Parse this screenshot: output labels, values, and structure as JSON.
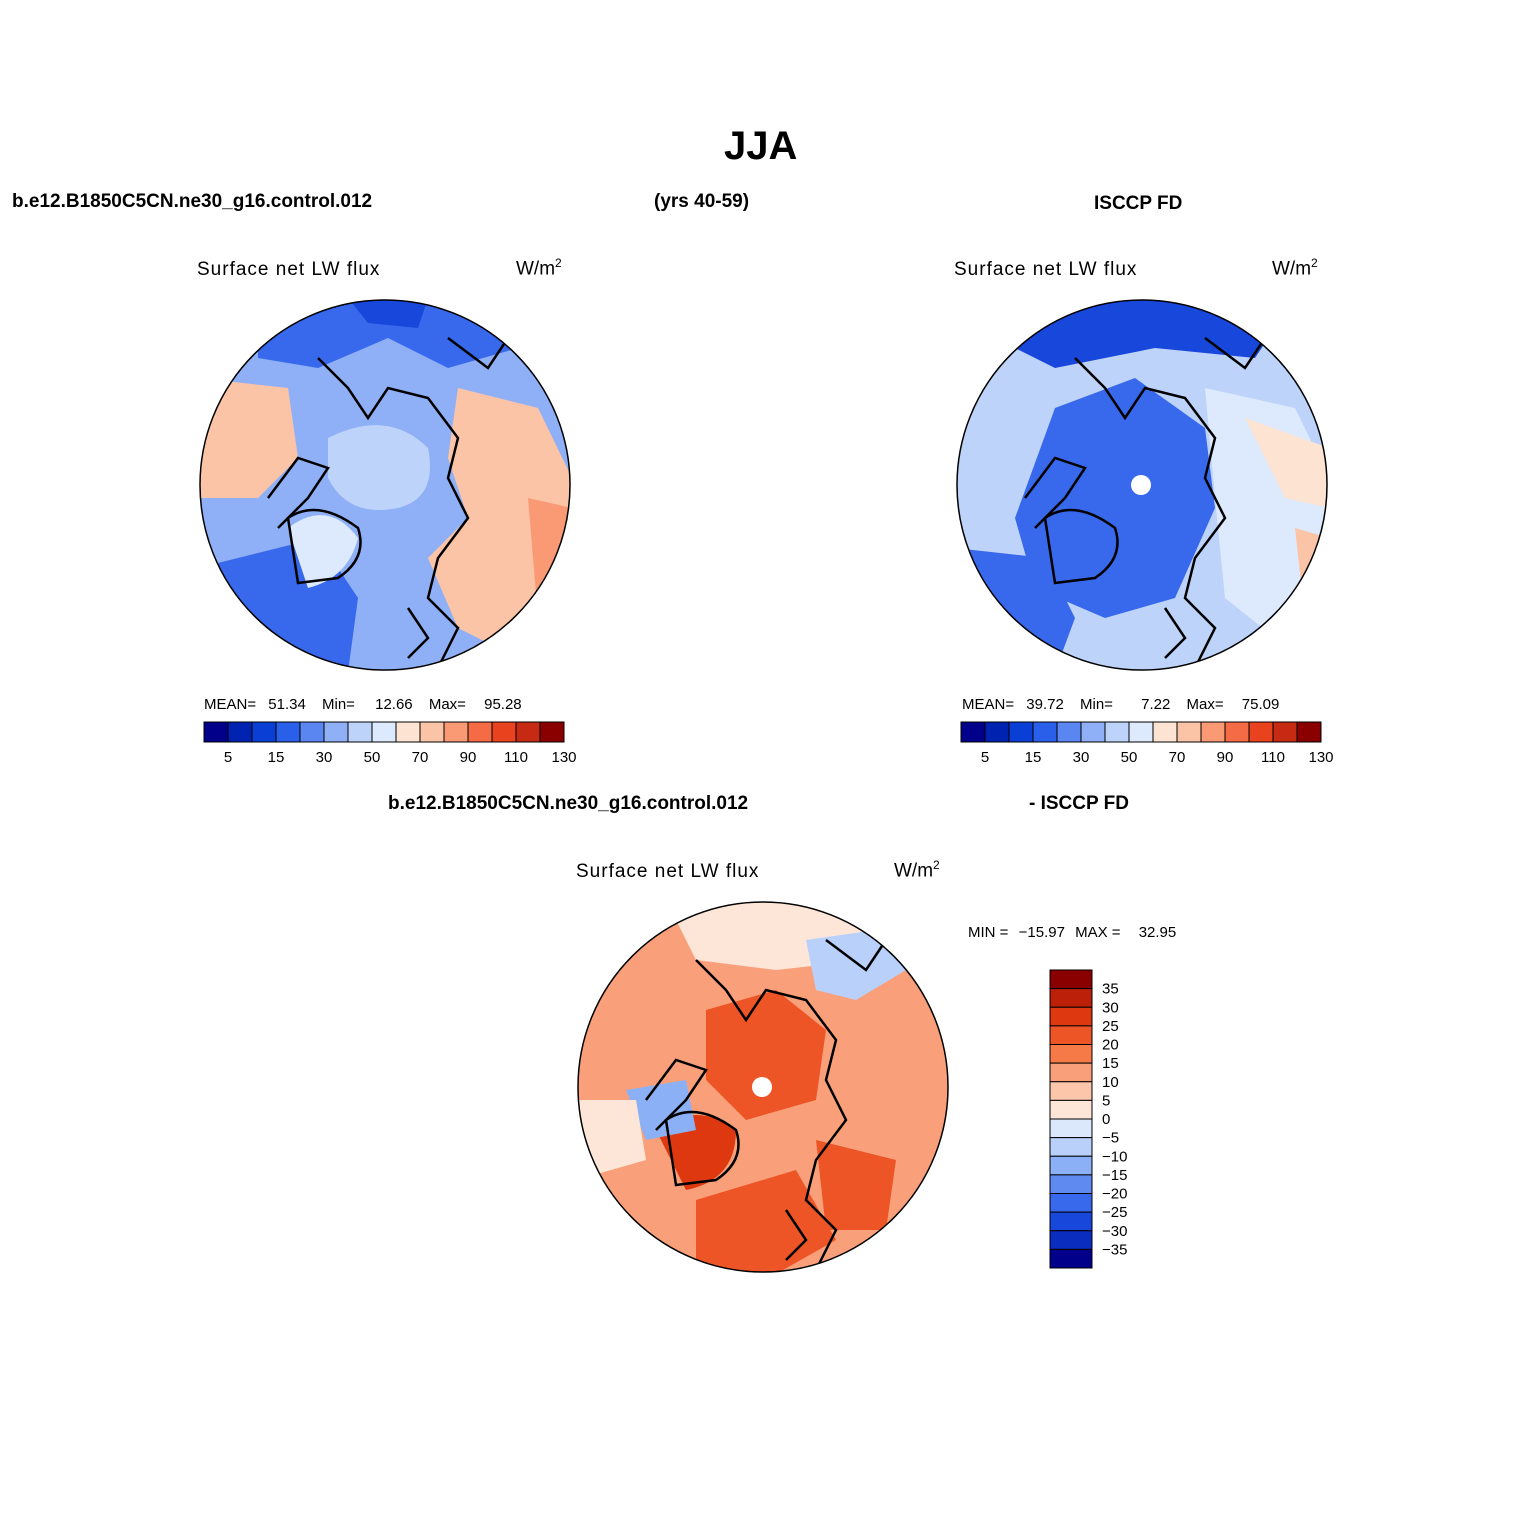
{
  "header": {
    "season": "JJA",
    "model_case": "b.e12.B1850C5CN.ne30_g16.control.012",
    "years": "(yrs 40-59)",
    "obs_name": "ISCCP FD",
    "diff_case": "b.e12.B1850C5CN.ne30_g16.control.012",
    "diff_obs": "- ISCCP FD"
  },
  "panels": {
    "model": {
      "title": "Surface net LW flux",
      "units": "W/m",
      "units_sup": "2",
      "mean_label": "MEAN=",
      "mean_value": "51.34",
      "min_label": "Min=",
      "min_value": "12.66",
      "max_label": "Max=",
      "max_value": "95.28"
    },
    "obs": {
      "title": "Surface net LW flux",
      "units": "W/m",
      "units_sup": "2",
      "mean_label": "MEAN=",
      "mean_value": "39.72",
      "min_label": "Min=",
      "min_value": "7.22",
      "max_label": "Max=",
      "max_value": "75.09"
    },
    "diff": {
      "title": "Surface net LW flux",
      "units": "W/m",
      "units_sup": "2",
      "min_label": "MIN =",
      "min_value": "−15.97",
      "max_label": "MAX =",
      "max_value": "32.95"
    }
  },
  "colorbars": {
    "horizontal": {
      "colors": [
        "#00008a",
        "#0022b0",
        "#0a3fd6",
        "#2a5fea",
        "#5a86f2",
        "#8fb0f6",
        "#bdd3fa",
        "#dde9fd",
        "#fde3d2",
        "#fcc4a6",
        "#f99a74",
        "#f46b45",
        "#e8421f",
        "#c72a12",
        "#8a0000"
      ],
      "tick_labels": [
        "5",
        "15",
        "30",
        "50",
        "70",
        "90",
        "110",
        "130"
      ]
    },
    "vertical": {
      "colors": [
        "#8a0000",
        "#bd2008",
        "#dd3810",
        "#ee5526",
        "#f67a48",
        "#f9a07a",
        "#fcc6aa",
        "#fde6d8",
        "#dbe8fc",
        "#b8d0fa",
        "#8cb0f6",
        "#5f8bf1",
        "#3868eb",
        "#1747db",
        "#0a2cbf",
        "#00008a"
      ],
      "tick_labels": [
        "35",
        "30",
        "25",
        "20",
        "15",
        "10",
        "5",
        "0",
        "−5",
        "−10",
        "−15",
        "−20",
        "−25",
        "−30",
        "−35"
      ]
    }
  }
}
